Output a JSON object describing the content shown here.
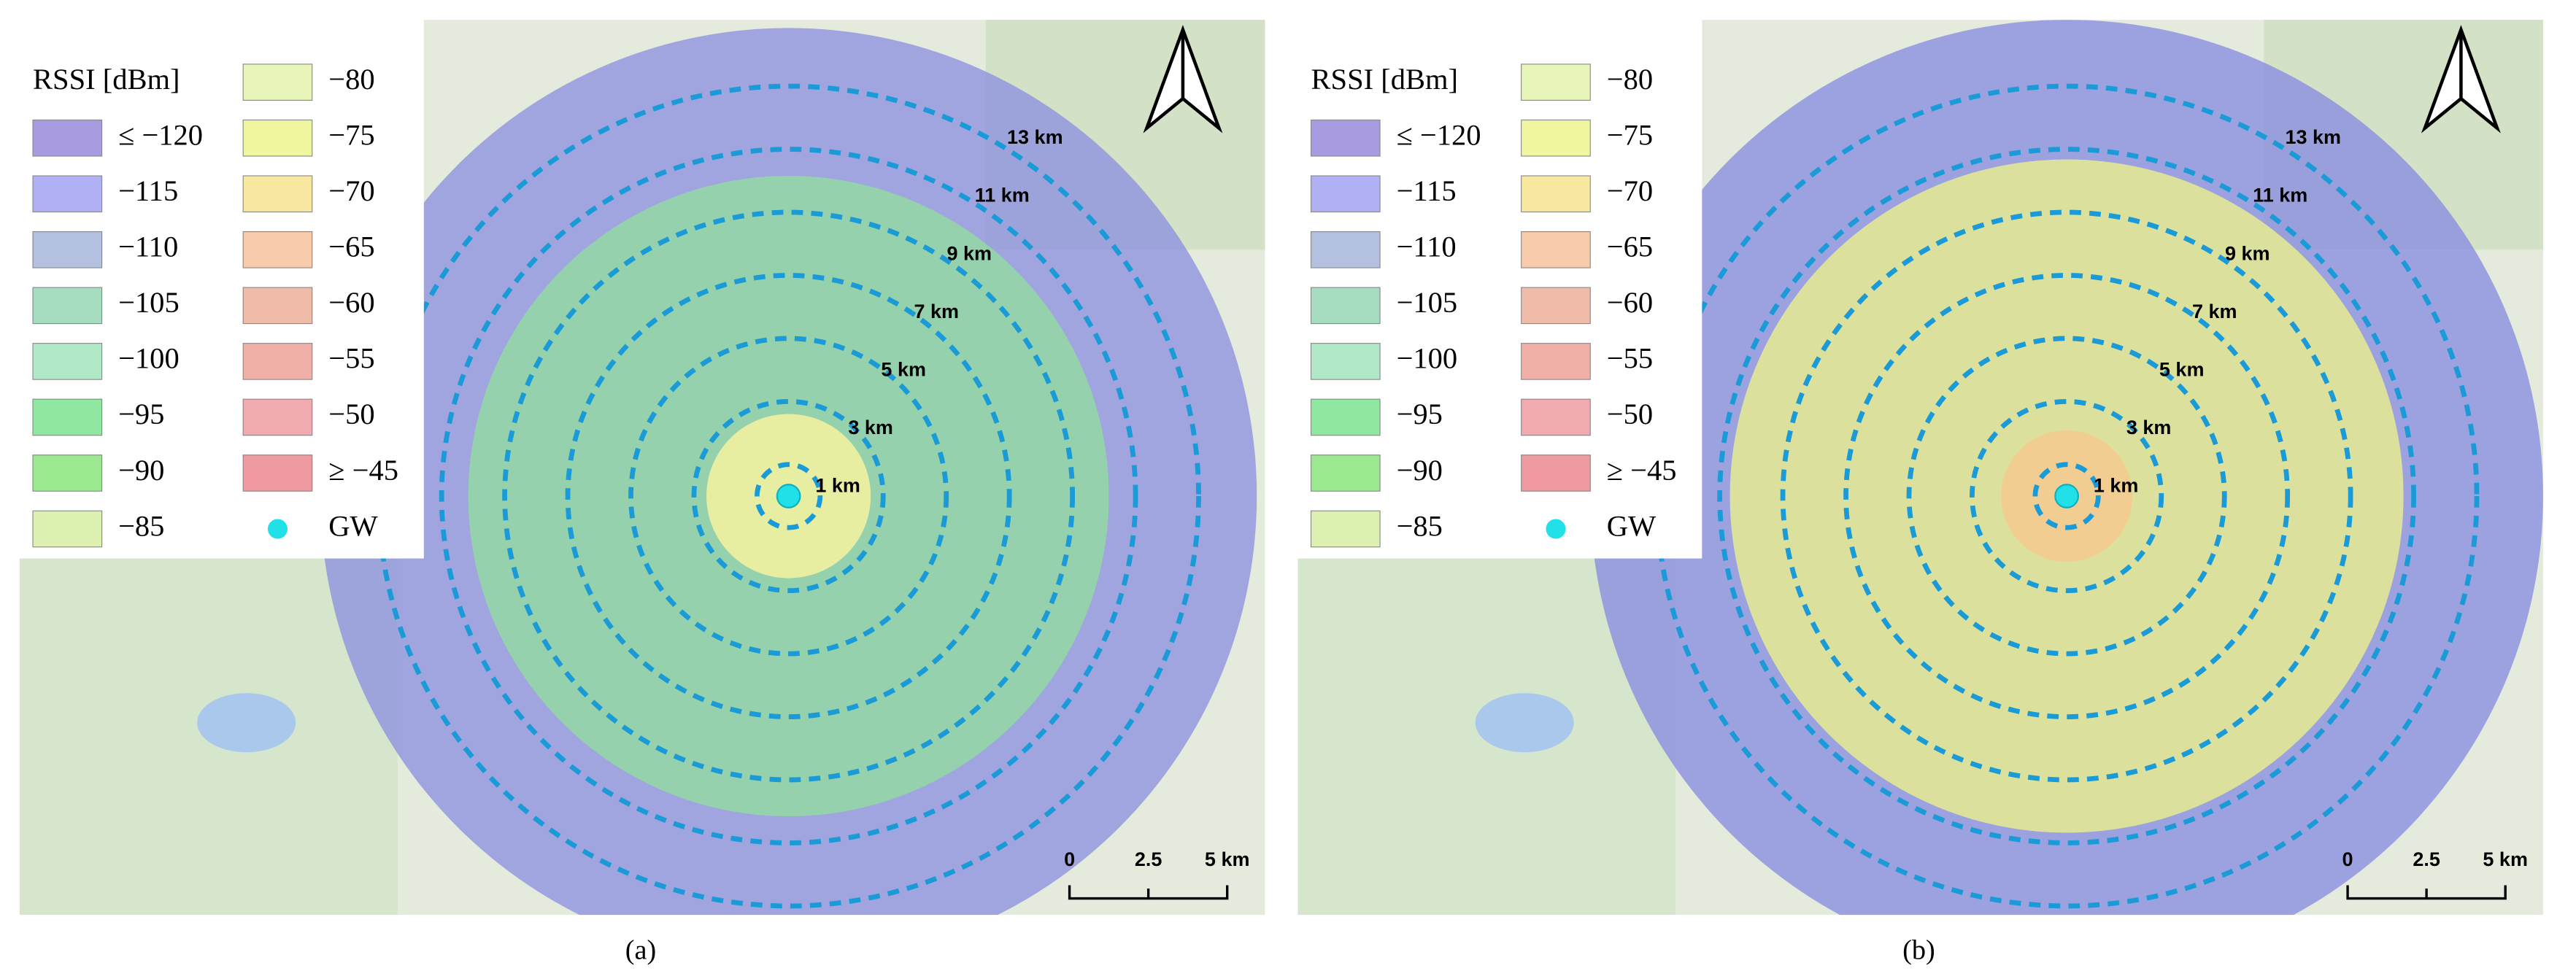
{
  "panels": [
    {
      "legend": {
        "title": "RSSI [dBm]",
        "items": [
          {
            "label": "≤ −120",
            "color": "#a89be0"
          },
          {
            "label": "−115",
            "color": "#b0b0f5"
          },
          {
            "label": "−110",
            "color": "#b3c0e0"
          },
          {
            "label": "−105",
            "color": "#a6dcc0"
          },
          {
            "label": "−100",
            "color": "#b0e8c8"
          },
          {
            "label": "−95",
            "color": "#8ee8a0"
          },
          {
            "label": "−90",
            "color": "#9be890"
          },
          {
            "label": "−85",
            "color": "#dcf0b0"
          },
          {
            "label": "−80",
            "color": "#e8f5b8"
          },
          {
            "label": "−75",
            "color": "#f0f5a0"
          },
          {
            "label": "−70",
            "color": "#f8e8a0"
          },
          {
            "label": "−65",
            "color": "#f8ccaa"
          },
          {
            "label": "−60",
            "color": "#f0bcaa"
          },
          {
            "label": "−55",
            "color": "#f0b0a8"
          },
          {
            "label": "−50",
            "color": "#f0aab0"
          },
          {
            "label": "≥ −45",
            "color": "#ee9aa0"
          }
        ],
        "gateway": "GW"
      },
      "rings": [
        "1 km",
        "3 km",
        "5 km",
        "7 km",
        "9 km",
        "11 km",
        "13 km"
      ],
      "scale_bar": [
        "0",
        "2.5",
        "5 km"
      ],
      "caption": "(a)"
    },
    {
      "legend": {
        "title": "RSSI [dBm]",
        "items": [
          {
            "label": "≤ −120",
            "color": "#a89be0"
          },
          {
            "label": "−115",
            "color": "#b0b0f5"
          },
          {
            "label": "−110",
            "color": "#b3c0e0"
          },
          {
            "label": "−105",
            "color": "#a6dcc0"
          },
          {
            "label": "−100",
            "color": "#b0e8c8"
          },
          {
            "label": "−95",
            "color": "#8ee8a0"
          },
          {
            "label": "−90",
            "color": "#9be890"
          },
          {
            "label": "−85",
            "color": "#dcf0b0"
          },
          {
            "label": "−80",
            "color": "#e8f5b8"
          },
          {
            "label": "−75",
            "color": "#f0f5a0"
          },
          {
            "label": "−70",
            "color": "#f8e8a0"
          },
          {
            "label": "−65",
            "color": "#f8ccaa"
          },
          {
            "label": "−60",
            "color": "#f0bcaa"
          },
          {
            "label": "−55",
            "color": "#f0b0a8"
          },
          {
            "label": "−50",
            "color": "#f0aab0"
          },
          {
            "label": "≥ −45",
            "color": "#ee9aa0"
          }
        ],
        "gateway": "GW"
      },
      "rings": [
        "1 km",
        "3 km",
        "5 km",
        "7 km",
        "9 km",
        "11 km",
        "13 km"
      ],
      "scale_bar": [
        "0",
        "2.5",
        "5 km"
      ],
      "caption": "(b)"
    }
  ]
}
